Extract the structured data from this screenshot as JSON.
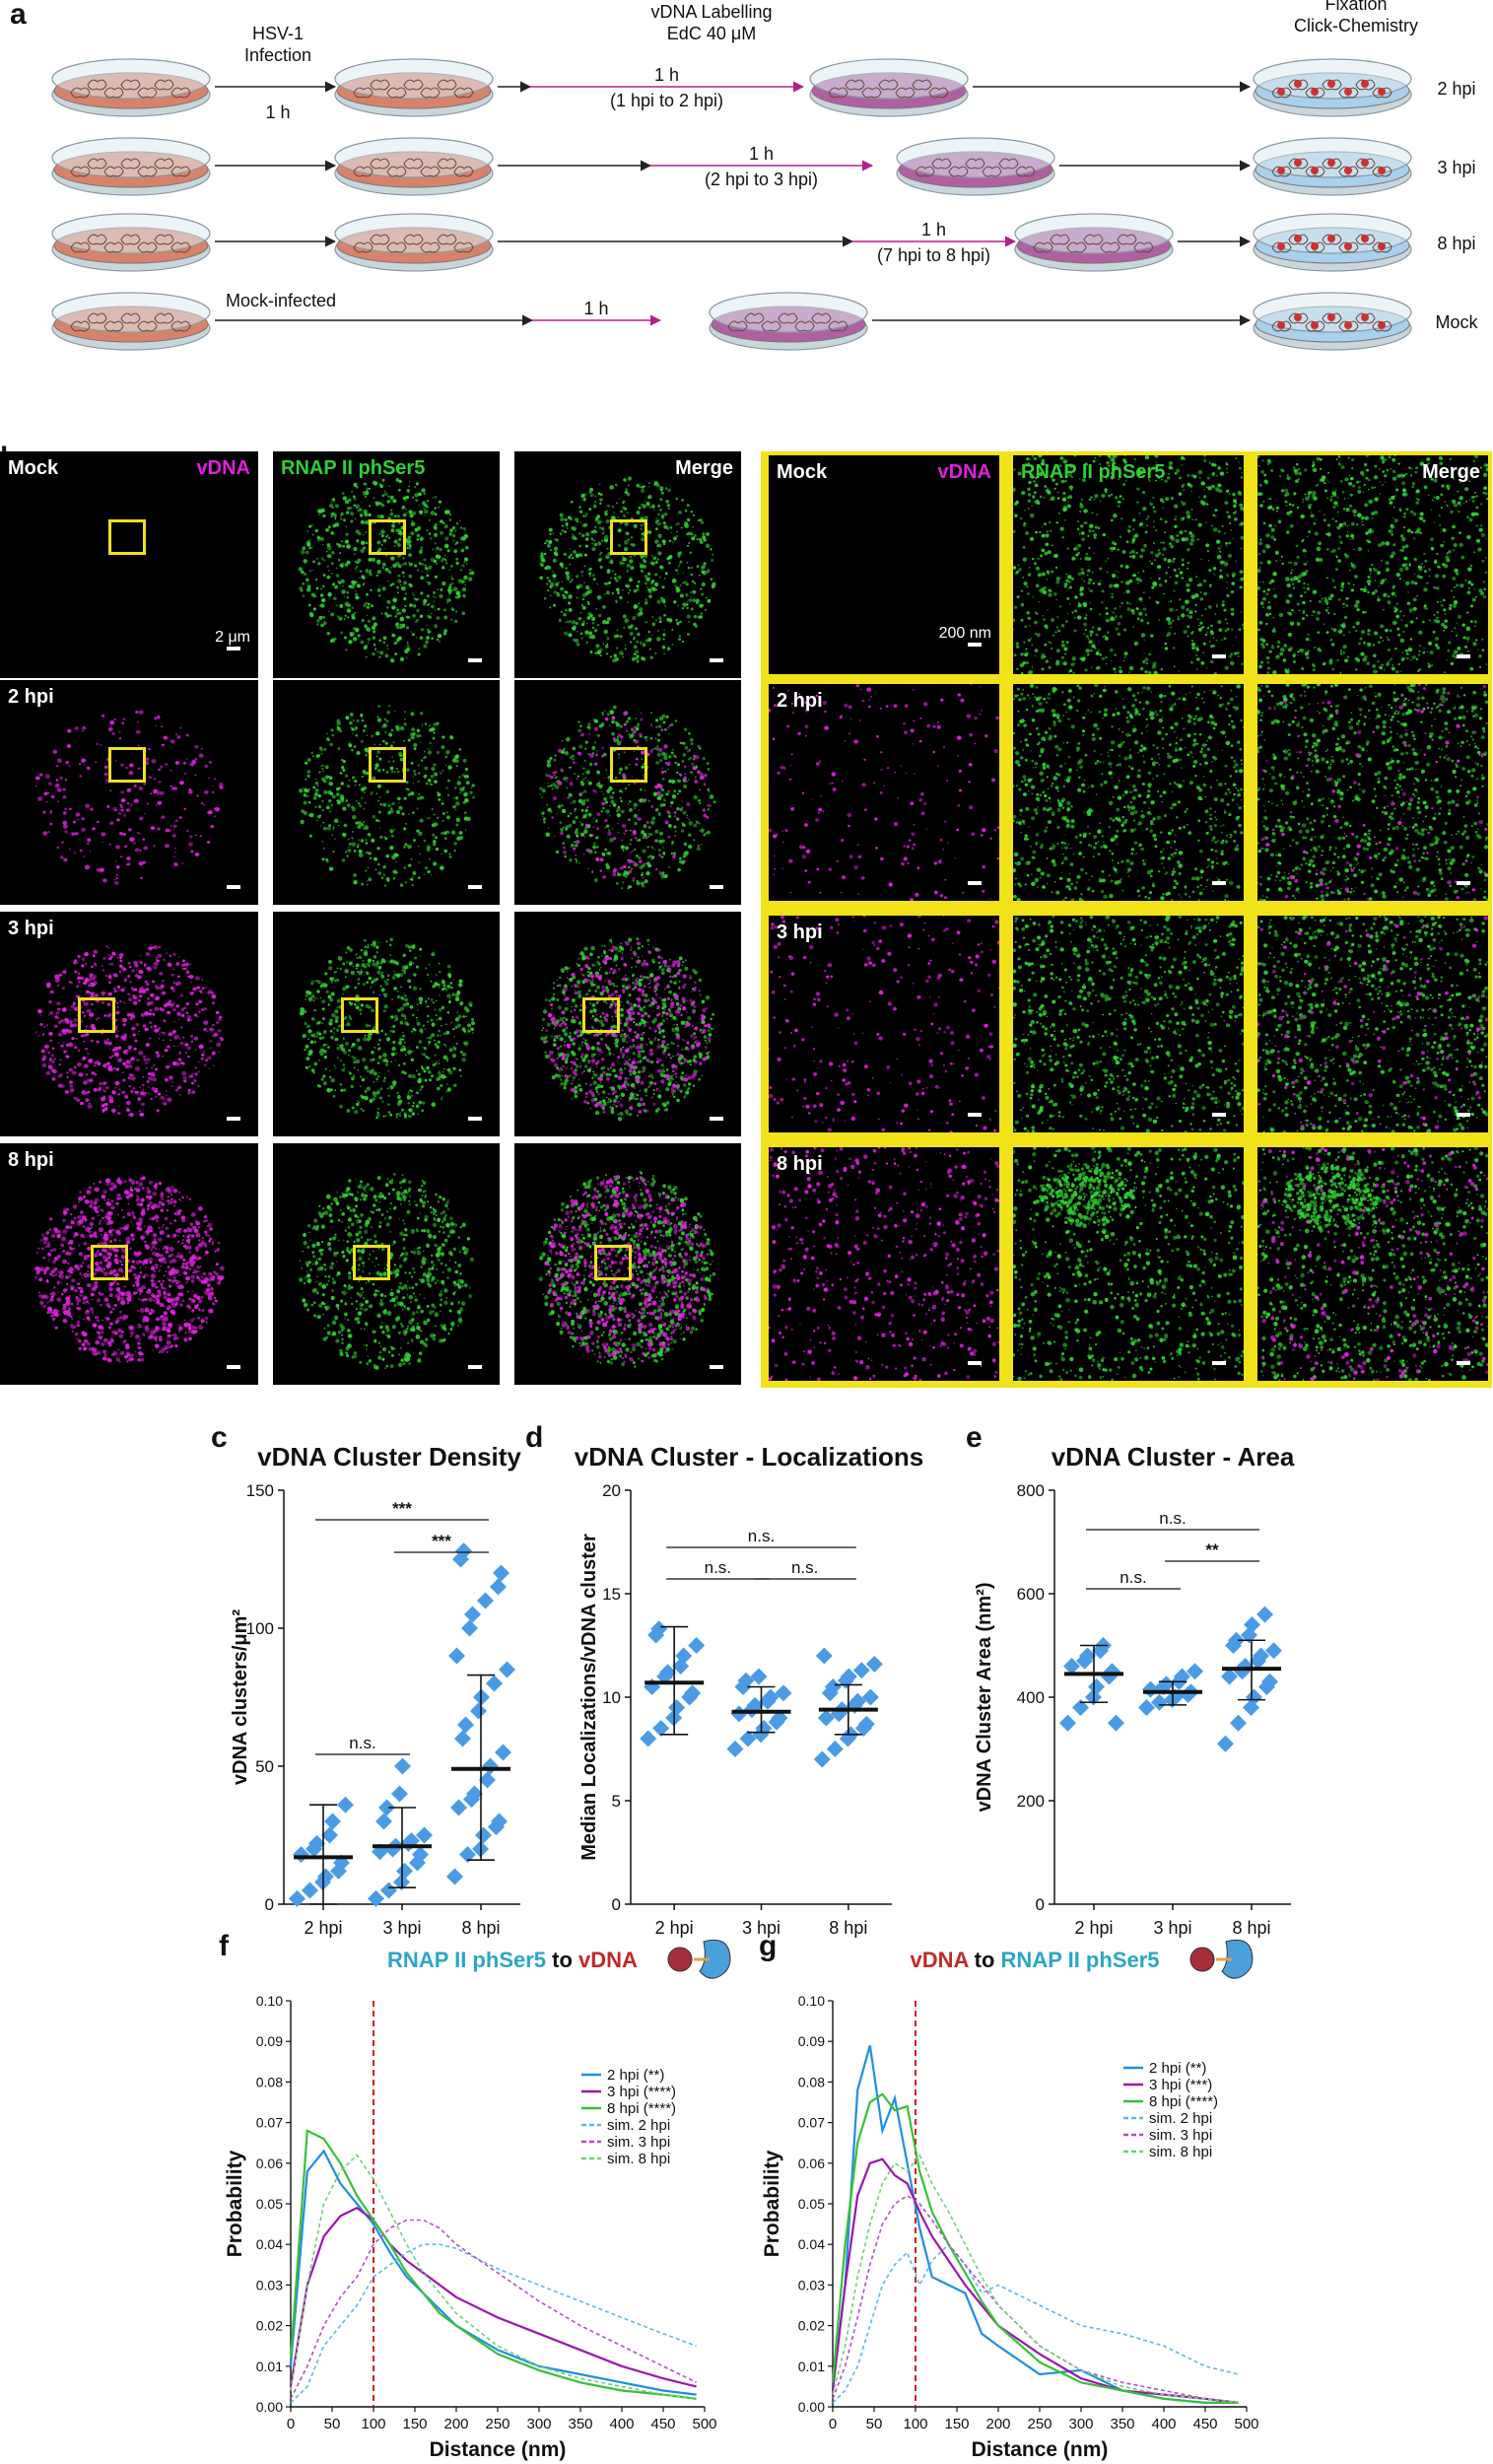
{
  "panel_labels": {
    "a": "a",
    "b": "b",
    "c": "c",
    "d": "d",
    "e": "e",
    "f": "f",
    "g": "g"
  },
  "schematic": {
    "header_infection": [
      "HSV-1",
      "Infection"
    ],
    "header_labelling": [
      "vDNA Labelling",
      "EdC 40 μM"
    ],
    "header_fixation": [
      "Fixation",
      "Click-Chemistry"
    ],
    "row1": {
      "infect_time": "1 h",
      "pulse": "1 h",
      "pulse_range": "(1 hpi to 2 hpi)",
      "end": "2 hpi"
    },
    "row2": {
      "pulse": "1 h",
      "pulse_range": "(2 hpi to 3 hpi)",
      "end": "3 hpi"
    },
    "row3": {
      "pulse": "1 h",
      "pulse_range": "(7 hpi to 8 hpi)",
      "end": "8 hpi"
    },
    "row4": {
      "mock_label": "Mock-infected",
      "pulse": "1 h",
      "end": "Mock"
    },
    "colors": {
      "dish_orange": "#d9826a",
      "dish_purple": "#b060a0",
      "dish_blue": "#a9d0ec",
      "arrow_pulse": "#b0208c",
      "nucleus_red": "#d03030"
    }
  },
  "micro": {
    "col_labels": {
      "vdna": "vDNA",
      "rnap": "RNAP II phSer5",
      "merge": "Merge"
    },
    "row_labels": [
      "Mock",
      "2 hpi",
      "3 hpi",
      "8 hpi"
    ],
    "scale_left": "2 μm",
    "scale_right": "200 nm",
    "colors": {
      "magenta": "#e020e0",
      "green": "#30d030",
      "yellow": "#f2e21a"
    }
  },
  "chart_data": [
    {
      "id": "c",
      "type": "scatter",
      "title": "vDNA Cluster Density",
      "ylabel": "vDNA clusters/μm²",
      "categories": [
        "2 hpi",
        "3 hpi",
        "8 hpi"
      ],
      "ylim": [
        0,
        150
      ],
      "yticks": [
        "0",
        "50",
        "100",
        "150"
      ],
      "series": [
        {
          "values": [
            2,
            5,
            8,
            10,
            12,
            15,
            18,
            20,
            22,
            25,
            30,
            36
          ],
          "mean": 17,
          "sd_low": 0,
          "sd_high": 36
        },
        {
          "values": [
            2,
            5,
            8,
            12,
            15,
            18,
            19,
            20,
            21,
            22,
            23,
            25,
            30,
            35,
            40,
            50
          ],
          "mean": 21,
          "sd_low": 6,
          "sd_high": 35
        },
        {
          "values": [
            10,
            18,
            20,
            25,
            28,
            30,
            35,
            38,
            40,
            45,
            50,
            55,
            60,
            65,
            70,
            75,
            80,
            85,
            90,
            100,
            105,
            110,
            115,
            120,
            125,
            128
          ],
          "mean": 49,
          "sd_low": 16,
          "sd_high": 83
        }
      ],
      "significance": [
        {
          "from": "2 hpi",
          "to": "8 hpi",
          "label": "***"
        },
        {
          "from": "3 hpi",
          "to": "8 hpi",
          "label": "***"
        },
        {
          "from": "2 hpi",
          "to": "3 hpi",
          "label": "n.s."
        }
      ]
    },
    {
      "id": "d",
      "type": "scatter",
      "title": "vDNA Cluster - Localizations",
      "ylabel": "Median Localizations/vDNA cluster",
      "categories": [
        "2 hpi",
        "3 hpi",
        "8 hpi"
      ],
      "ylim": [
        0,
        20
      ],
      "yticks": [
        "0",
        "5",
        "10",
        "15",
        "20"
      ],
      "series": [
        {
          "values": [
            8,
            8.5,
            9,
            9.5,
            10,
            10.2,
            10.5,
            11,
            11.2,
            11.5,
            12,
            12.5,
            13,
            13.3
          ],
          "mean": 10.7,
          "sd_low": 8.2,
          "sd_high": 13.4
        },
        {
          "values": [
            7.5,
            8,
            8.2,
            8.5,
            8.8,
            9,
            9.2,
            9.4,
            9.6,
            9.8,
            10,
            10.2,
            10.5,
            10.8,
            11
          ],
          "mean": 9.3,
          "sd_low": 8.3,
          "sd_high": 10.5
        },
        {
          "values": [
            7,
            7.5,
            8,
            8.2,
            8.5,
            8.7,
            9,
            9.2,
            9.4,
            9.6,
            9.8,
            10,
            10.2,
            10.5,
            10.8,
            11,
            11.3,
            11.6,
            12
          ],
          "mean": 9.4,
          "sd_low": 8.2,
          "sd_high": 10.6
        }
      ],
      "significance": [
        {
          "from": "2 hpi",
          "to": "8 hpi",
          "label": "n.s."
        },
        {
          "from": "2 hpi",
          "to": "3 hpi",
          "label": "n.s."
        },
        {
          "from": "3 hpi",
          "to": "8 hpi",
          "label": "n.s."
        }
      ]
    },
    {
      "id": "e",
      "type": "scatter",
      "title": "vDNA Cluster - Area",
      "ylabel": "vDNA Cluster Area (nm²)",
      "categories": [
        "2 hpi",
        "3 hpi",
        "8 hpi"
      ],
      "ylim": [
        0,
        800
      ],
      "yticks": [
        "0",
        "200",
        "400",
        "600",
        "800"
      ],
      "series": [
        {
          "values": [
            350,
            380,
            400,
            420,
            440,
            450,
            460,
            470,
            480,
            490,
            500,
            350
          ],
          "mean": 445,
          "sd_low": 390,
          "sd_high": 500
        },
        {
          "values": [
            380,
            390,
            395,
            400,
            405,
            410,
            415,
            420,
            425,
            430,
            440,
            450
          ],
          "mean": 410,
          "sd_low": 385,
          "sd_high": 430
        },
        {
          "values": [
            310,
            350,
            380,
            400,
            420,
            430,
            440,
            450,
            460,
            470,
            480,
            490,
            500,
            510,
            520,
            540,
            560
          ],
          "mean": 455,
          "sd_low": 395,
          "sd_high": 510
        }
      ],
      "significance": [
        {
          "from": "2 hpi",
          "to": "8 hpi",
          "label": "n.s."
        },
        {
          "from": "2 hpi",
          "to": "3 hpi",
          "label": "n.s."
        },
        {
          "from": "3 hpi",
          "to": "8 hpi",
          "label": "**"
        }
      ]
    },
    {
      "id": "f",
      "type": "line",
      "title_parts": [
        {
          "text": "RNAP II phSer5",
          "color": "#2aa6c8"
        },
        {
          "text": " to ",
          "color": "#111111"
        },
        {
          "text": "vDNA",
          "color": "#c0282c"
        }
      ],
      "xlabel": "Distance (nm)",
      "ylabel": "Probability",
      "xlim": [
        0,
        500
      ],
      "ylim": [
        0,
        0.1
      ],
      "xticks": [
        "0",
        "50",
        "100",
        "150",
        "200",
        "250",
        "300",
        "350",
        "400",
        "450",
        "500"
      ],
      "yticks": [
        "0.00",
        "0.01",
        "0.02",
        "0.03",
        "0.04",
        "0.05",
        "0.06",
        "0.07",
        "0.08",
        "0.09",
        "0.10"
      ],
      "vline": 100,
      "x": [
        0,
        20,
        40,
        60,
        80,
        100,
        120,
        140,
        160,
        180,
        200,
        250,
        300,
        350,
        400,
        450,
        490
      ],
      "series": [
        {
          "name": "2 hpi (**)",
          "color": "#1f8fe0",
          "dash": false,
          "values": [
            0.01,
            0.058,
            0.063,
            0.055,
            0.05,
            0.045,
            0.038,
            0.032,
            0.028,
            0.024,
            0.02,
            0.014,
            0.01,
            0.008,
            0.006,
            0.004,
            0.003
          ]
        },
        {
          "name": "3 hpi (****)",
          "color": "#9a16b0",
          "dash": false,
          "values": [
            0.005,
            0.03,
            0.042,
            0.047,
            0.049,
            0.046,
            0.04,
            0.036,
            0.033,
            0.03,
            0.027,
            0.022,
            0.018,
            0.014,
            0.01,
            0.007,
            0.005
          ]
        },
        {
          "name": "8 hpi (****)",
          "color": "#38c038",
          "dash": false,
          "values": [
            0.012,
            0.068,
            0.066,
            0.06,
            0.052,
            0.046,
            0.04,
            0.033,
            0.028,
            0.023,
            0.02,
            0.013,
            0.009,
            0.006,
            0.004,
            0.003,
            0.002
          ]
        },
        {
          "name": "sim. 2 hpi",
          "color": "#5ab8e8",
          "dash": true,
          "values": [
            0.001,
            0.005,
            0.015,
            0.02,
            0.025,
            0.032,
            0.035,
            0.038,
            0.04,
            0.04,
            0.039,
            0.034,
            0.03,
            0.026,
            0.022,
            0.018,
            0.015
          ]
        },
        {
          "name": "sim. 3 hpi",
          "color": "#b050c8",
          "dash": true,
          "values": [
            0.002,
            0.01,
            0.02,
            0.027,
            0.032,
            0.04,
            0.044,
            0.046,
            0.046,
            0.044,
            0.04,
            0.033,
            0.026,
            0.02,
            0.015,
            0.01,
            0.006
          ]
        },
        {
          "name": "sim. 8 hpi",
          "color": "#70d070",
          "dash": true,
          "values": [
            0.004,
            0.03,
            0.05,
            0.058,
            0.062,
            0.056,
            0.048,
            0.04,
            0.033,
            0.028,
            0.023,
            0.015,
            0.01,
            0.007,
            0.005,
            0.003,
            0.002
          ]
        }
      ]
    },
    {
      "id": "g",
      "type": "line",
      "title_parts": [
        {
          "text": "vDNA",
          "color": "#c0282c"
        },
        {
          "text": " to ",
          "color": "#111111"
        },
        {
          "text": "RNAP II phSer5",
          "color": "#2aa6c8"
        }
      ],
      "xlabel": "Distance (nm)",
      "ylabel": "Probability",
      "xlim": [
        0,
        500
      ],
      "ylim": [
        0,
        0.1
      ],
      "xticks": [
        "0",
        "50",
        "100",
        "150",
        "200",
        "250",
        "300",
        "350",
        "400",
        "450",
        "500"
      ],
      "yticks": [
        "0.00",
        "0.01",
        "0.02",
        "0.03",
        "0.04",
        "0.05",
        "0.06",
        "0.07",
        "0.08",
        "0.09",
        "0.10"
      ],
      "vline": 100,
      "x": [
        0,
        15,
        30,
        45,
        60,
        75,
        90,
        105,
        120,
        140,
        160,
        180,
        200,
        250,
        300,
        350,
        400,
        450,
        490
      ],
      "series": [
        {
          "name": "2 hpi (**)",
          "color": "#1f8fe0",
          "dash": false,
          "values": [
            0.005,
            0.03,
            0.078,
            0.089,
            0.068,
            0.076,
            0.06,
            0.044,
            0.032,
            0.03,
            0.028,
            0.018,
            0.015,
            0.008,
            0.009,
            0.004,
            0.002,
            0.001,
            0.001
          ]
        },
        {
          "name": "3 hpi (***)",
          "color": "#9a16b0",
          "dash": false,
          "values": [
            0.004,
            0.03,
            0.052,
            0.06,
            0.061,
            0.057,
            0.055,
            0.048,
            0.042,
            0.036,
            0.03,
            0.025,
            0.02,
            0.013,
            0.007,
            0.004,
            0.003,
            0.002,
            0.001
          ]
        },
        {
          "name": "8 hpi (****)",
          "color": "#38c038",
          "dash": false,
          "values": [
            0.006,
            0.04,
            0.065,
            0.075,
            0.077,
            0.073,
            0.074,
            0.058,
            0.048,
            0.04,
            0.033,
            0.026,
            0.02,
            0.011,
            0.006,
            0.004,
            0.002,
            0.001,
            0.001
          ]
        },
        {
          "name": "sim. 2 hpi",
          "color": "#5ab8e8",
          "dash": true,
          "values": [
            0.001,
            0.004,
            0.01,
            0.02,
            0.03,
            0.035,
            0.038,
            0.03,
            0.036,
            0.04,
            0.035,
            0.028,
            0.03,
            0.025,
            0.02,
            0.018,
            0.015,
            0.01,
            0.008
          ]
        },
        {
          "name": "sim. 3 hpi",
          "color": "#b050c8",
          "dash": true,
          "values": [
            0.002,
            0.01,
            0.022,
            0.035,
            0.045,
            0.05,
            0.052,
            0.05,
            0.046,
            0.04,
            0.035,
            0.03,
            0.025,
            0.015,
            0.009,
            0.006,
            0.004,
            0.002,
            0.001
          ]
        },
        {
          "name": "sim. 8 hpi",
          "color": "#70d070",
          "dash": true,
          "values": [
            0.003,
            0.015,
            0.032,
            0.045,
            0.055,
            0.06,
            0.058,
            0.062,
            0.055,
            0.048,
            0.04,
            0.032,
            0.025,
            0.015,
            0.009,
            0.005,
            0.003,
            0.002,
            0.001
          ]
        }
      ]
    }
  ]
}
